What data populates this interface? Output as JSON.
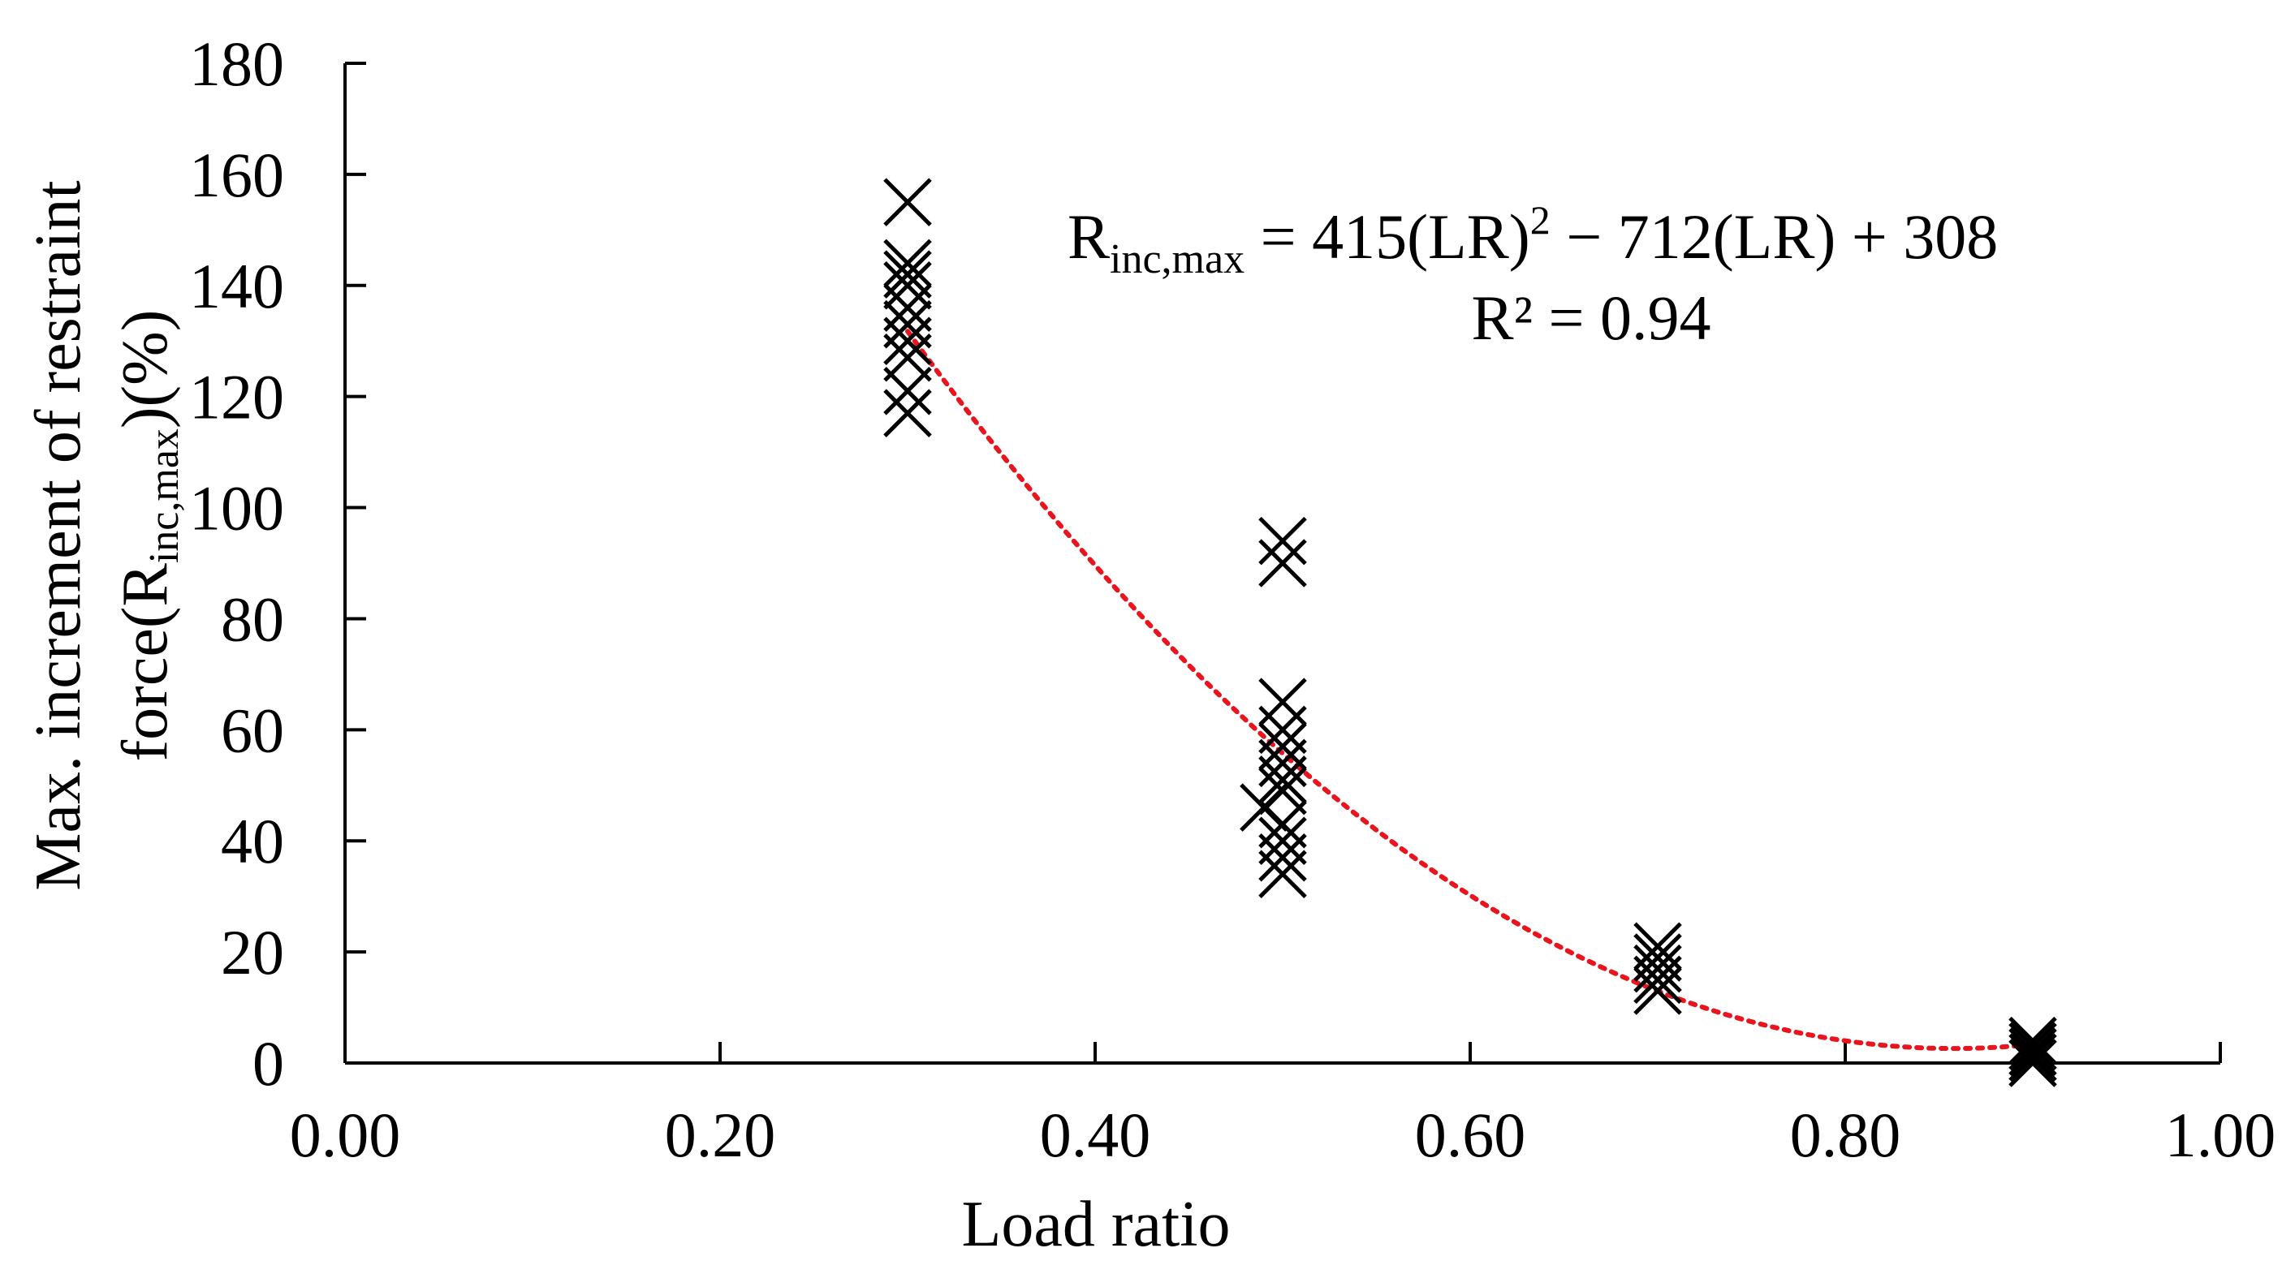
{
  "chart_data": {
    "type": "scatter",
    "xlabel": "Load ratio",
    "ylabel_line1": "Max. increment of restraint",
    "ylabel_line2_pre": "force(R",
    "ylabel_line2_sub": "inc,max",
    "ylabel_line2_post": ")(%)",
    "xlim": [
      0,
      1
    ],
    "ylim": [
      0,
      180
    ],
    "x_ticks": [
      "0.00",
      "0.20",
      "0.40",
      "0.60",
      "0.80",
      "1.00"
    ],
    "y_ticks": [
      "0",
      "20",
      "40",
      "60",
      "80",
      "100",
      "120",
      "140",
      "160",
      "180"
    ],
    "grid": false,
    "marker": "x",
    "marker_color": "#000000",
    "points": [
      {
        "x": 0.3,
        "y": 155
      },
      {
        "x": 0.3,
        "y": 144
      },
      {
        "x": 0.3,
        "y": 142
      },
      {
        "x": 0.3,
        "y": 140
      },
      {
        "x": 0.3,
        "y": 136
      },
      {
        "x": 0.3,
        "y": 133
      },
      {
        "x": 0.3,
        "y": 130
      },
      {
        "x": 0.3,
        "y": 127
      },
      {
        "x": 0.3,
        "y": 121
      },
      {
        "x": 0.3,
        "y": 117
      },
      {
        "x": 0.5,
        "y": 94
      },
      {
        "x": 0.5,
        "y": 90
      },
      {
        "x": 0.5,
        "y": 65
      },
      {
        "x": 0.5,
        "y": 60
      },
      {
        "x": 0.5,
        "y": 57
      },
      {
        "x": 0.5,
        "y": 54
      },
      {
        "x": 0.5,
        "y": 51
      },
      {
        "x": 0.5,
        "y": 49
      },
      {
        "x": 0.49,
        "y": 46
      },
      {
        "x": 0.5,
        "y": 43
      },
      {
        "x": 0.5,
        "y": 40
      },
      {
        "x": 0.5,
        "y": 37
      },
      {
        "x": 0.5,
        "y": 34
      },
      {
        "x": 0.7,
        "y": 21
      },
      {
        "x": 0.7,
        "y": 19
      },
      {
        "x": 0.7,
        "y": 17
      },
      {
        "x": 0.7,
        "y": 15
      },
      {
        "x": 0.7,
        "y": 13
      },
      {
        "x": 0.9,
        "y": 4
      },
      {
        "x": 0.9,
        "y": 3
      },
      {
        "x": 0.9,
        "y": 2
      },
      {
        "x": 0.9,
        "y": 1
      },
      {
        "x": 0.9,
        "y": 0
      }
    ],
    "trendline": {
      "type": "polynomial",
      "coefficients": [
        415,
        -712,
        308
      ],
      "x_range": [
        0.3,
        0.9
      ],
      "color": "#e8141e",
      "style": "dotted"
    },
    "equation": {
      "lhs_main": "R",
      "lhs_sub": "inc,max",
      "rhs_a": " = 415(LR)",
      "rhs_sup": "2",
      "rhs_b": " − 712(LR) + 308",
      "r2": "R² = 0.94"
    }
  }
}
